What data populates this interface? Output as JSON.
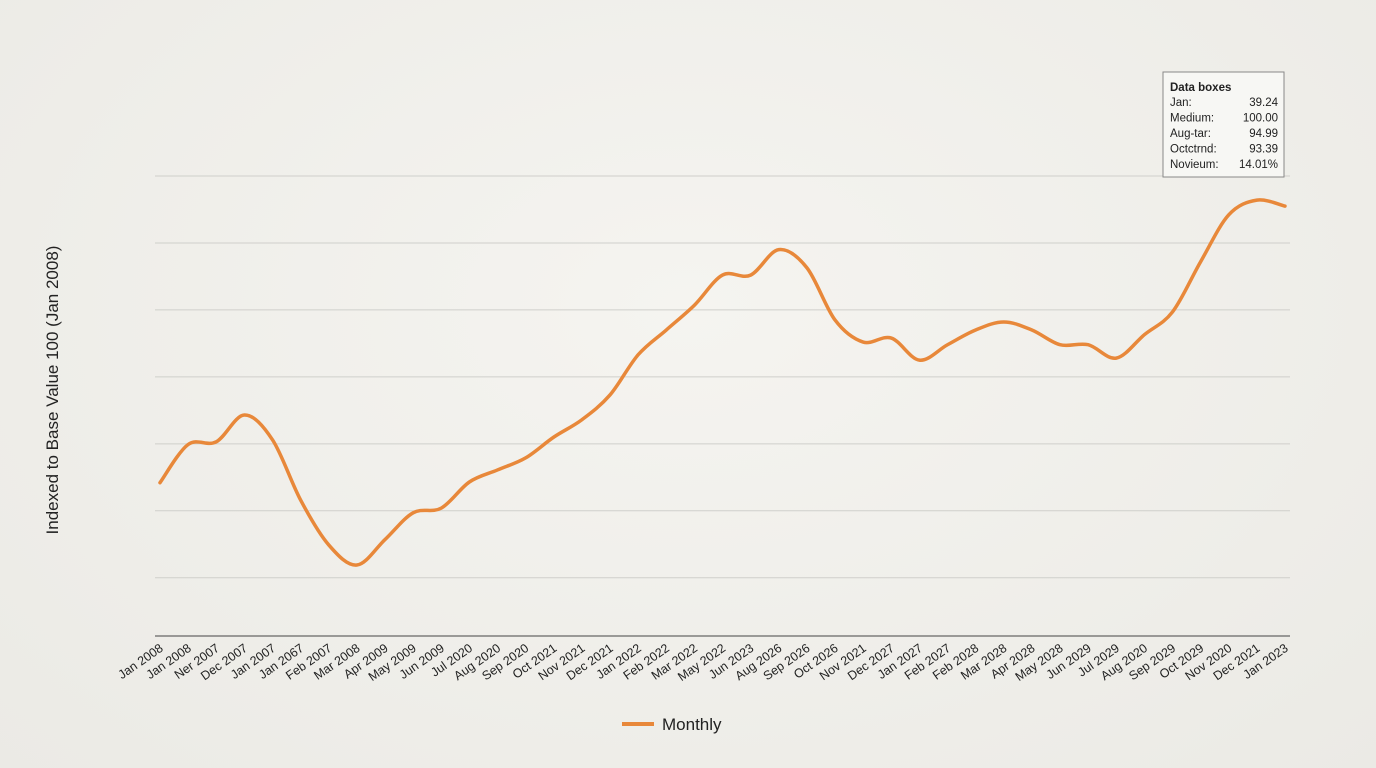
{
  "chart_data": {
    "type": "line",
    "y_label": "Indexed to Base Value 100 (Jan 2008)",
    "categories": [
      "Jan 2008",
      "Jan 2008",
      "Ner 2007",
      "Dec 2007",
      "Jan 2007",
      "Jan 2067",
      "Feb 2007",
      "Mar 2008",
      "Apr 2009",
      "May 2009",
      "Jun 2009",
      "Jul 2020",
      "Aug 2020",
      "Sep 2020",
      "Oct 2021",
      "Nov 2021",
      "Dec 2021",
      "Jan 2022",
      "Feb 2022",
      "Mar 2022",
      "May 2022",
      "Jun 2023",
      "Aug 2026",
      "Sep 2026",
      "Oct 2026",
      "Nov 2021",
      "Dec 2027",
      "Jan 2027",
      "Feb 2027",
      "Feb 2028",
      "Mar 2028",
      "Apr 2028",
      "May 2028",
      "Jun 2029",
      "Jul 2029",
      "Aug 2020",
      "Sep 2029",
      "Oct 2029",
      "Nov 2020",
      "Dec 2021",
      "Jan 2023"
    ],
    "series": [
      {
        "name": "Monthly",
        "color": "#e8883a",
        "values": [
          64.2,
          69.9,
          70.3,
          74.3,
          70.6,
          61.6,
          54.9,
          51.9,
          55.7,
          59.7,
          60.4,
          64.3,
          66.1,
          67.9,
          71.0,
          73.6,
          77.3,
          83.3,
          87.0,
          90.7,
          95.2,
          95.2,
          99.0,
          96.3,
          88.5,
          85.2,
          85.8,
          82.5,
          84.8,
          87.0,
          88.2,
          87.0,
          84.8,
          84.8,
          82.8,
          86.3,
          89.7,
          97.2,
          104.2,
          106.4,
          105.5
        ]
      }
    ],
    "ylim": [
      41.3,
      110
    ],
    "yticks": [
      50,
      60,
      70,
      80,
      90,
      100,
      110
    ],
    "show_ytick_labels": false,
    "grid": true,
    "legend": "bottom",
    "annotation_box": {
      "title": "Data boxes",
      "rows": [
        [
          "Jan:",
          "39.24"
        ],
        [
          "Medium:",
          "100.00"
        ],
        [
          "Aug-tar:",
          "94.99"
        ],
        [
          "Octctrnd:",
          "93.39"
        ],
        [
          "Novieum:",
          "14.01%"
        ]
      ]
    }
  }
}
